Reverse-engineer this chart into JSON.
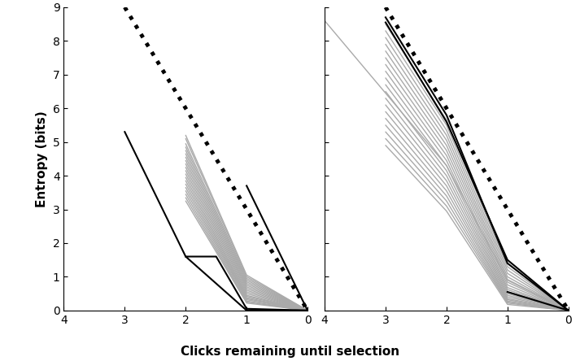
{
  "xlabel": "Clicks remaining until selection",
  "ylabel": "Entropy (bits)",
  "xlim": [
    4,
    0
  ],
  "ylim": [
    0,
    9
  ],
  "yticks": [
    0,
    1,
    2,
    3,
    4,
    5,
    6,
    7,
    8,
    9
  ],
  "xticks": [
    4,
    3,
    2,
    1,
    0
  ],
  "dotted_line": {
    "x": [
      3,
      2,
      1,
      0
    ],
    "y": [
      9,
      6,
      3,
      0
    ],
    "color": "black",
    "linestyle": "dotted",
    "linewidth": 3.5
  },
  "panel1": {
    "gray_lines": [
      {
        "x": [
          2,
          1,
          0
        ],
        "y": [
          5.2,
          1.05,
          0.0
        ]
      },
      {
        "x": [
          2,
          1,
          0
        ],
        "y": [
          5.1,
          1.0,
          0.0
        ]
      },
      {
        "x": [
          2,
          1,
          0
        ],
        "y": [
          4.95,
          0.95,
          0.0
        ]
      },
      {
        "x": [
          2,
          1,
          0
        ],
        "y": [
          4.85,
          0.9,
          0.0
        ]
      },
      {
        "x": [
          2,
          1,
          0
        ],
        "y": [
          4.75,
          0.85,
          0.0
        ]
      },
      {
        "x": [
          2,
          1,
          0
        ],
        "y": [
          4.65,
          0.8,
          0.0
        ]
      },
      {
        "x": [
          2,
          1,
          0
        ],
        "y": [
          4.55,
          0.75,
          0.0
        ]
      },
      {
        "x": [
          2,
          1,
          0
        ],
        "y": [
          4.45,
          0.7,
          0.0
        ]
      },
      {
        "x": [
          2,
          1,
          0
        ],
        "y": [
          4.35,
          0.65,
          0.0
        ]
      },
      {
        "x": [
          2,
          1,
          0
        ],
        "y": [
          4.25,
          0.6,
          0.0
        ]
      },
      {
        "x": [
          2,
          1,
          0
        ],
        "y": [
          4.15,
          0.55,
          0.0
        ]
      },
      {
        "x": [
          2,
          1,
          0
        ],
        "y": [
          4.05,
          0.5,
          0.0
        ]
      },
      {
        "x": [
          2,
          1,
          0
        ],
        "y": [
          3.95,
          0.45,
          0.0
        ]
      },
      {
        "x": [
          2,
          1,
          0
        ],
        "y": [
          3.85,
          0.42,
          0.0
        ]
      },
      {
        "x": [
          2,
          1,
          0
        ],
        "y": [
          3.75,
          0.38,
          0.0
        ]
      },
      {
        "x": [
          2,
          1,
          0
        ],
        "y": [
          3.65,
          0.35,
          0.0
        ]
      },
      {
        "x": [
          2,
          1,
          0
        ],
        "y": [
          3.55,
          0.32,
          0.0
        ]
      },
      {
        "x": [
          2,
          1,
          0
        ],
        "y": [
          3.45,
          0.28,
          0.0
        ]
      },
      {
        "x": [
          2,
          1,
          0
        ],
        "y": [
          3.35,
          0.25,
          0.0
        ]
      },
      {
        "x": [
          2,
          1,
          0
        ],
        "y": [
          3.25,
          0.22,
          0.0
        ]
      }
    ],
    "black_lines": [
      {
        "x": [
          3,
          2,
          1,
          0
        ],
        "y": [
          5.3,
          1.6,
          0.0,
          0.0
        ]
      },
      {
        "x": [
          2,
          1.5,
          1,
          0
        ],
        "y": [
          1.6,
          1.6,
          0.05,
          0.0
        ]
      },
      {
        "x": [
          1,
          0
        ],
        "y": [
          3.7,
          0.0
        ]
      }
    ]
  },
  "panel2": {
    "gray_lines": [
      {
        "x": [
          4,
          3,
          2,
          1,
          0
        ],
        "y": [
          8.6,
          6.45,
          4.3,
          0.9,
          0.0
        ]
      },
      {
        "x": [
          3,
          2,
          1,
          0
        ],
        "y": [
          8.5,
          5.65,
          1.3,
          0.0
        ]
      },
      {
        "x": [
          3,
          2,
          1,
          0
        ],
        "y": [
          8.3,
          5.5,
          1.2,
          0.0
        ]
      },
      {
        "x": [
          3,
          2,
          1,
          0
        ],
        "y": [
          8.1,
          5.35,
          1.1,
          0.0
        ]
      },
      {
        "x": [
          3,
          2,
          1,
          0
        ],
        "y": [
          7.9,
          5.2,
          1.0,
          0.0
        ]
      },
      {
        "x": [
          3,
          2,
          1,
          0
        ],
        "y": [
          7.7,
          5.05,
          0.92,
          0.0
        ]
      },
      {
        "x": [
          3,
          2,
          1,
          0
        ],
        "y": [
          7.5,
          4.9,
          0.84,
          0.0
        ]
      },
      {
        "x": [
          3,
          2,
          1,
          0
        ],
        "y": [
          7.3,
          4.75,
          0.76,
          0.0
        ]
      },
      {
        "x": [
          3,
          2,
          1,
          0
        ],
        "y": [
          7.1,
          4.6,
          0.68,
          0.0
        ]
      },
      {
        "x": [
          3,
          2,
          1,
          0
        ],
        "y": [
          6.9,
          4.45,
          0.62,
          0.0
        ]
      },
      {
        "x": [
          3,
          2,
          1,
          0
        ],
        "y": [
          6.7,
          4.3,
          0.56,
          0.0
        ]
      },
      {
        "x": [
          3,
          2,
          1,
          0
        ],
        "y": [
          6.5,
          4.15,
          0.5,
          0.0
        ]
      },
      {
        "x": [
          3,
          2,
          1,
          0
        ],
        "y": [
          6.3,
          4.0,
          0.45,
          0.0
        ]
      },
      {
        "x": [
          3,
          2,
          1,
          0
        ],
        "y": [
          6.1,
          3.85,
          0.4,
          0.0
        ]
      },
      {
        "x": [
          3,
          2,
          1,
          0
        ],
        "y": [
          5.9,
          3.7,
          0.35,
          0.0
        ]
      },
      {
        "x": [
          3,
          2,
          1,
          0
        ],
        "y": [
          5.7,
          3.55,
          0.32,
          0.0
        ]
      },
      {
        "x": [
          3,
          2,
          1,
          0
        ],
        "y": [
          5.5,
          3.4,
          0.28,
          0.0
        ]
      },
      {
        "x": [
          3,
          2,
          1,
          0
        ],
        "y": [
          5.3,
          3.25,
          0.25,
          0.0
        ]
      },
      {
        "x": [
          3,
          2,
          1,
          0
        ],
        "y": [
          5.1,
          3.1,
          0.22,
          0.0
        ]
      },
      {
        "x": [
          3,
          2,
          1,
          0
        ],
        "y": [
          4.9,
          2.95,
          0.18,
          0.0
        ]
      }
    ],
    "black_lines": [
      {
        "x": [
          3,
          2,
          1,
          0
        ],
        "y": [
          8.7,
          5.8,
          1.4,
          0.0
        ]
      },
      {
        "x": [
          3,
          2,
          1,
          0
        ],
        "y": [
          8.55,
          5.6,
          1.5,
          0.0
        ]
      },
      {
        "x": [
          1,
          0
        ],
        "y": [
          0.55,
          0.0
        ]
      }
    ]
  },
  "gray_color": "#aaaaaa",
  "black_color": "#000000",
  "bg_color": "#ffffff",
  "linewidth_gray": 1.0,
  "linewidth_black": 1.5,
  "linewidth_dotted": 3.5,
  "tick_labelsize": 10,
  "axis_labelsize": 11
}
